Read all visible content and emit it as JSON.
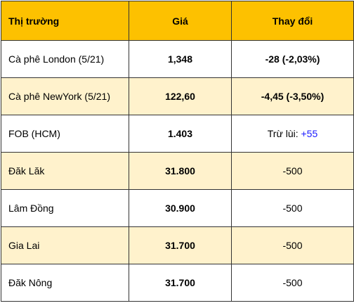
{
  "header": {
    "market": "Thị trường",
    "price": "Giá",
    "change": "Thay đổi"
  },
  "rows": [
    {
      "market": "Cà phê London (5/21)",
      "price": "1,348",
      "change": "-28 (-2,03%)"
    },
    {
      "market": "Cà phê NewYork (5/21)",
      "price": "122,60",
      "change": "-4,45 (-3,50%)"
    },
    {
      "market": "FOB (HCM)",
      "price": "1.403",
      "change_prefix": "Trừ lùi: ",
      "change_value": "+55"
    },
    {
      "market": "Đăk Lăk",
      "price": "31.800",
      "change": "-500"
    },
    {
      "market": "Lâm Đồng",
      "price": "30.900",
      "change": "-500"
    },
    {
      "market": "Gia Lai",
      "price": "31.700",
      "change": "-500"
    },
    {
      "market": "Đăk Nông",
      "price": "31.700",
      "change": "-500"
    }
  ],
  "colors": {
    "header_bg": "#fdc100",
    "alt_row_bg": "#fff2cc",
    "negative": "#ff0000",
    "positive": "#1a1aff"
  }
}
